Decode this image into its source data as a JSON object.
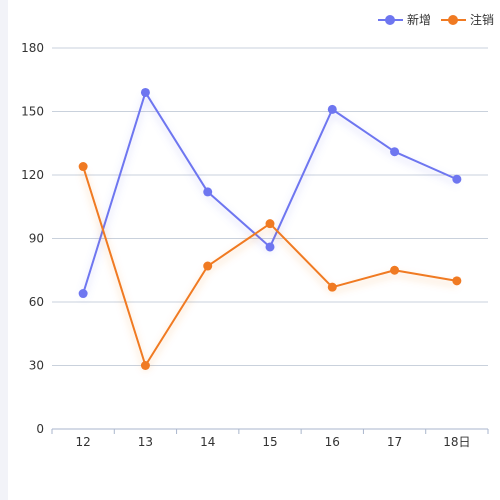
{
  "chart_data": {
    "type": "line",
    "categories": [
      "12",
      "13",
      "14",
      "15",
      "16",
      "17",
      "18日"
    ],
    "series": [
      {
        "name": "新增",
        "color": "#6e76f0",
        "values": [
          64,
          159,
          112,
          86,
          151,
          131,
          118
        ]
      },
      {
        "name": "注销",
        "color": "#f07a22",
        "values": [
          124,
          30,
          77,
          97,
          67,
          75,
          70
        ]
      }
    ],
    "title": "",
    "xlabel": "",
    "ylabel": "",
    "ylim": [
      0,
      180
    ],
    "yticks": [
      "0",
      "30",
      "60",
      "90",
      "120",
      "150",
      "180"
    ],
    "grid": true,
    "legend_position": "top-right"
  }
}
